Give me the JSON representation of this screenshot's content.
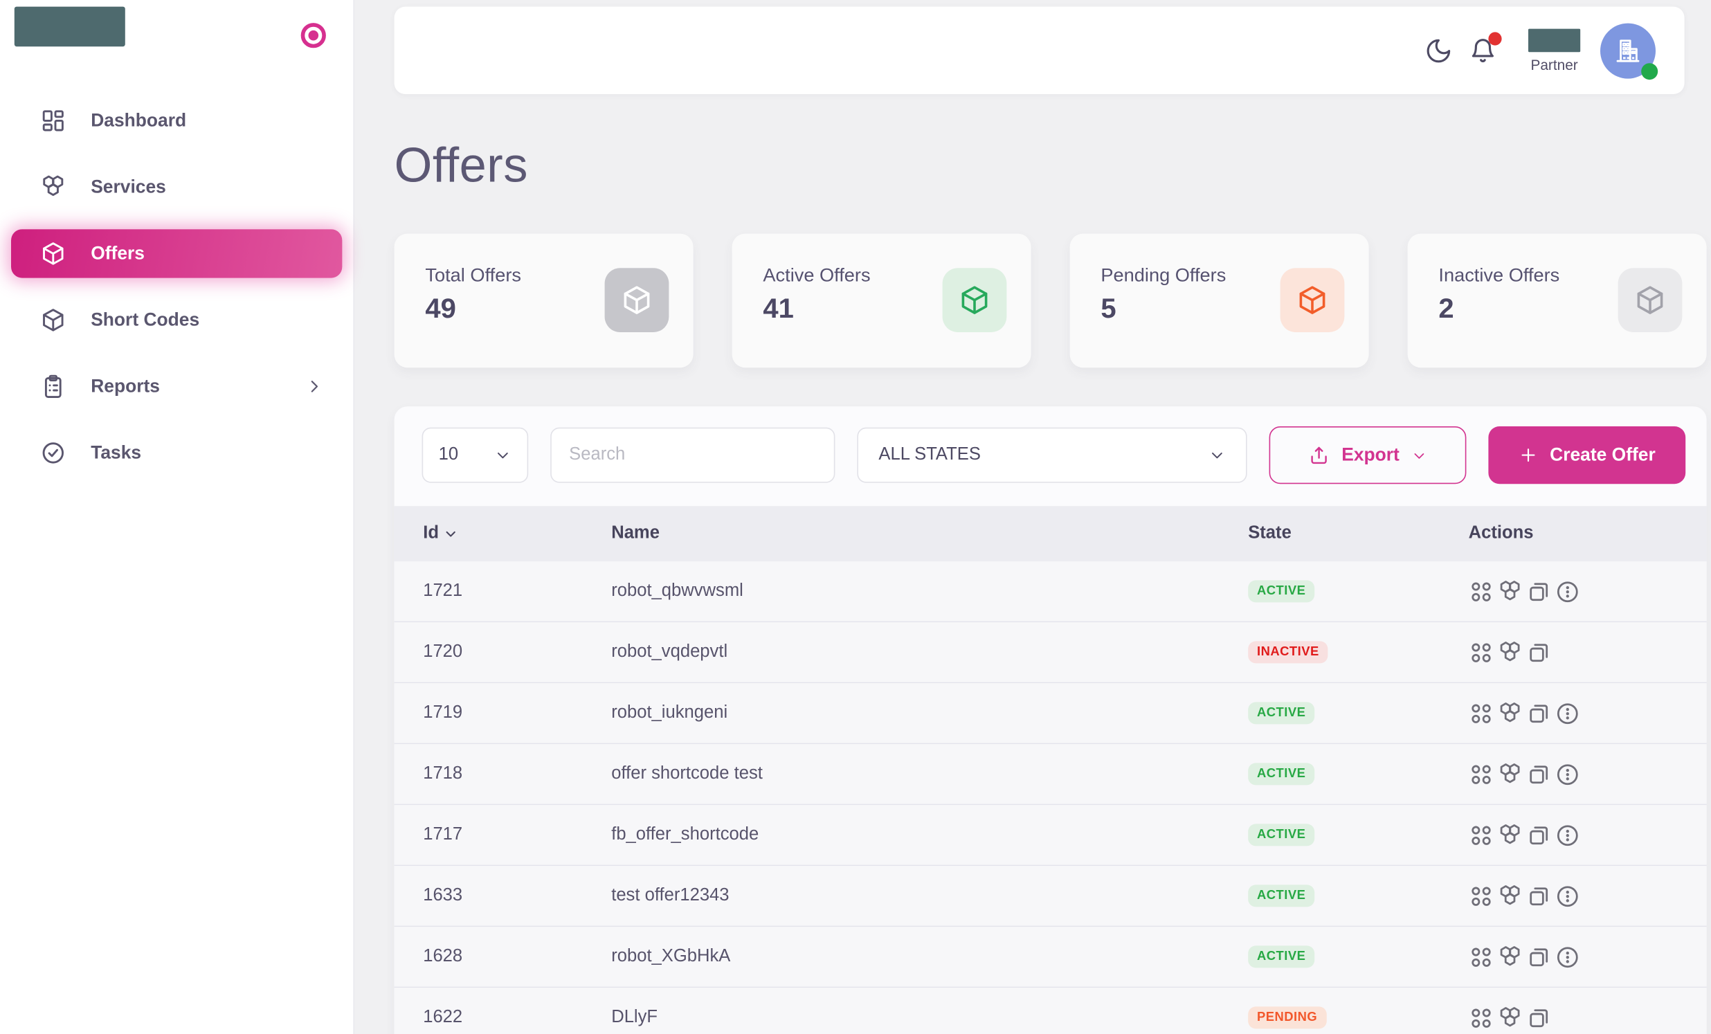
{
  "sidebar": {
    "nav": [
      {
        "label": "Dashboard",
        "icon": "dashboard",
        "active": false,
        "chevron": false
      },
      {
        "label": "Services",
        "icon": "services",
        "active": false,
        "chevron": false
      },
      {
        "label": "Offers",
        "icon": "cube",
        "active": true,
        "chevron": false
      },
      {
        "label": "Short Codes",
        "icon": "cube",
        "active": false,
        "chevron": false
      },
      {
        "label": "Reports",
        "icon": "clipboard",
        "active": false,
        "chevron": true
      },
      {
        "label": "Tasks",
        "icon": "check-circle",
        "active": false,
        "chevron": false
      }
    ]
  },
  "topbar": {
    "partner_label": "Partner"
  },
  "page_title": "Offers",
  "stats": [
    {
      "label": "Total Offers",
      "value": "49",
      "variant": "total"
    },
    {
      "label": "Active Offers",
      "value": "41",
      "variant": "active"
    },
    {
      "label": "Pending Offers",
      "value": "5",
      "variant": "pending"
    },
    {
      "label": "Inactive Offers",
      "value": "2",
      "variant": "inactive"
    }
  ],
  "filters": {
    "page_size": "10",
    "search_placeholder": "Search",
    "state_filter": "ALL STATES",
    "export_label": "Export",
    "create_offer_label": "Create Offer"
  },
  "table": {
    "columns": [
      "Id",
      "Name",
      "State",
      "Actions"
    ],
    "rows": [
      {
        "id": "1721",
        "name": "robot_qbwvwsml",
        "state": "ACTIVE",
        "actions": [
          "keywords",
          "services",
          "copy",
          "more"
        ]
      },
      {
        "id": "1720",
        "name": "robot_vqdepvtl",
        "state": "INACTIVE",
        "actions": [
          "keywords",
          "services",
          "copy"
        ]
      },
      {
        "id": "1719",
        "name": "robot_iukngeni",
        "state": "ACTIVE",
        "actions": [
          "keywords",
          "services",
          "copy",
          "more"
        ]
      },
      {
        "id": "1718",
        "name": "offer shortcode test",
        "state": "ACTIVE",
        "actions": [
          "keywords",
          "services",
          "copy",
          "more"
        ]
      },
      {
        "id": "1717",
        "name": "fb_offer_shortcode",
        "state": "ACTIVE",
        "actions": [
          "keywords",
          "services",
          "copy",
          "more"
        ]
      },
      {
        "id": "1633",
        "name": "test offer12343",
        "state": "ACTIVE",
        "actions": [
          "keywords",
          "services",
          "copy",
          "more"
        ]
      },
      {
        "id": "1628",
        "name": "robot_XGbHkA",
        "state": "ACTIVE",
        "actions": [
          "keywords",
          "services",
          "copy",
          "more"
        ]
      },
      {
        "id": "1622",
        "name": "DLlyF",
        "state": "PENDING",
        "actions": [
          "keywords",
          "services",
          "copy"
        ]
      }
    ]
  },
  "colors": {
    "primary_pink": "#d23490",
    "sidebar_active_gradient": [
      "#ce1f7e",
      "#e1589f"
    ],
    "active_text": "#27a844",
    "active_bg": "#dff0e2",
    "inactive_text": "#e01b1b",
    "inactive_bg": "#f8e0e0",
    "pending_text": "#f2572b",
    "pending_bg": "#fbe3d8",
    "logo_teal": "#4e6a6e",
    "avatar_blue": "#7e97e0",
    "online_green": "#21a94b",
    "notification_red": "#e23232"
  }
}
